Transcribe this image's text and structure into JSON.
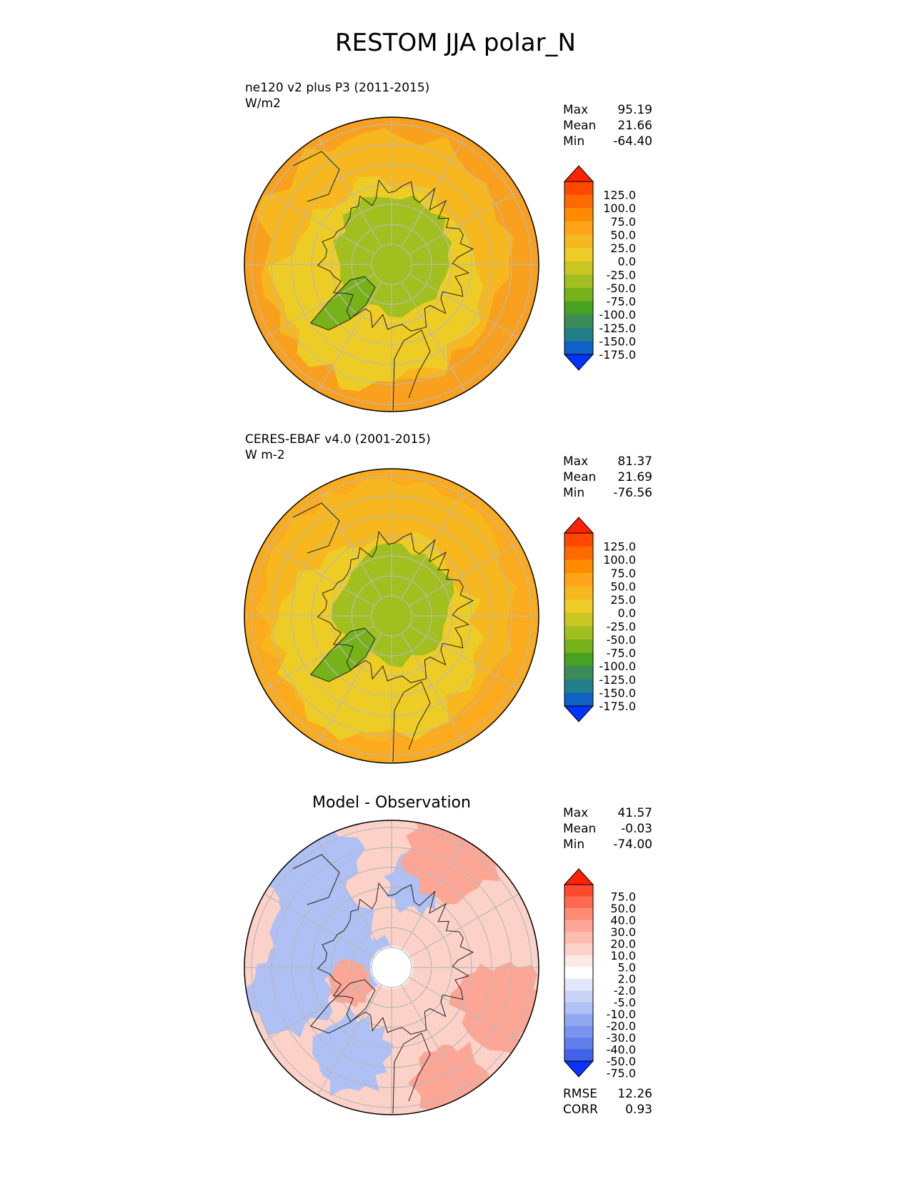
{
  "page_title": "RESTOM JJA polar_N",
  "chart_data": [
    {
      "type": "heatmap",
      "projection": "north-polar-stereographic",
      "title_line1": "ne120 v2 plus P3 (2011-2015)",
      "title_line2": "W/m2",
      "stats": [
        {
          "label": "Max",
          "value": "95.19"
        },
        {
          "label": "Mean",
          "value": "21.66"
        },
        {
          "label": "Min",
          "value": "-64.40"
        }
      ],
      "colorbar": {
        "ticks": [
          "125.0",
          "100.0",
          "75.0",
          "50.0",
          "25.0",
          "0.0",
          "-25.0",
          "-50.0",
          "-75.0",
          "-100.0",
          "-125.0",
          "-150.0",
          "-175.0"
        ],
        "colors": [
          "#ff2200",
          "#ff4700",
          "#ff6a00",
          "#ff8c00",
          "#ffa418",
          "#f6b81e",
          "#eecc26",
          "#c9c623",
          "#a1bf1f",
          "#77b21b",
          "#47a122",
          "#3c8c5a",
          "#227f88",
          "#0e62c6",
          "#0033ff"
        ],
        "extend": "both"
      },
      "field_regions": {
        "outer_ring": "#f9a01f",
        "mid_ring": "#f6b81e",
        "inner_ring": "#eecc26",
        "arctic_ocean": "#a1bf1f",
        "greenland": "#77b21b"
      }
    },
    {
      "type": "heatmap",
      "projection": "north-polar-stereographic",
      "title_line1": "CERES-EBAF v4.0 (2001-2015)",
      "title_line2": "W m-2",
      "stats": [
        {
          "label": "Max",
          "value": "81.37"
        },
        {
          "label": "Mean",
          "value": "21.69"
        },
        {
          "label": "Min",
          "value": "-76.56"
        }
      ],
      "colorbar": {
        "ticks": [
          "125.0",
          "100.0",
          "75.0",
          "50.0",
          "25.0",
          "0.0",
          "-25.0",
          "-50.0",
          "-75.0",
          "-100.0",
          "-125.0",
          "-150.0",
          "-175.0"
        ],
        "colors": [
          "#ff2200",
          "#ff4700",
          "#ff6a00",
          "#ff8c00",
          "#ffa418",
          "#f6b81e",
          "#eecc26",
          "#c9c623",
          "#a1bf1f",
          "#77b21b",
          "#47a122",
          "#3c8c5a",
          "#227f88",
          "#0e62c6",
          "#0033ff"
        ],
        "extend": "both"
      },
      "field_regions": {
        "outer_ring": "#fbab1d",
        "mid_ring": "#f6b81e",
        "inner_ring": "#eecc26",
        "arctic_ocean": "#a1bf1f",
        "greenland": "#77b21b"
      }
    },
    {
      "type": "heatmap",
      "projection": "north-polar-stereographic",
      "title_center": "Model - Observation",
      "stats": [
        {
          "label": "Max",
          "value": "41.57"
        },
        {
          "label": "Mean",
          "value": "-0.03"
        },
        {
          "label": "Min",
          "value": "-74.00"
        }
      ],
      "colorbar": {
        "ticks": [
          "75.0",
          "50.0",
          "40.0",
          "30.0",
          "20.0",
          "10.0",
          "5.0",
          "2.0",
          "-2.0",
          "-5.0",
          "-10.0",
          "-20.0",
          "-30.0",
          "-40.0",
          "-50.0",
          "-75.0"
        ],
        "colors": [
          "#ff2200",
          "#ff4a2e",
          "#ff6a50",
          "#ff8a74",
          "#fda696",
          "#fcbdb0",
          "#fcd2c8",
          "#fde8e2",
          "#ffffff",
          "#e2e8fb",
          "#c9d3f7",
          "#aec0f4",
          "#92a9f1",
          "#7994ef",
          "#5f7eec",
          "#4263e9",
          "#0a33ff"
        ],
        "extend": "both"
      },
      "metrics": [
        {
          "label": "RMSE",
          "value": "12.26"
        },
        {
          "label": "CORR",
          "value": "0.93"
        }
      ],
      "field_regions": {
        "base": "#fcd2c8",
        "blue_patches": "#aec0f4",
        "red_patches": "#fda696"
      }
    }
  ]
}
